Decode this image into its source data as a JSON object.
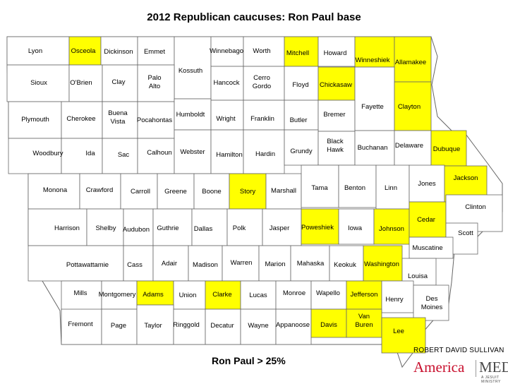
{
  "title": "2012 Republican caucuses: Ron Paul base",
  "legend": "Ron Paul  > 25%",
  "author": "ROBERT DAVID SULLIVAN",
  "logo": {
    "left": "America",
    "right": "MEDIA",
    "sub": "A JESUIT MINISTRY"
  },
  "colors": {
    "highlight": "#ffff00",
    "default": "#ffffff",
    "border": "#666666"
  },
  "counties": [
    {
      "name": "Lyon",
      "highlighted": false
    },
    {
      "name": "Osceola",
      "highlighted": true
    },
    {
      "name": "Dickinson",
      "highlighted": false
    },
    {
      "name": "Emmet",
      "highlighted": false
    },
    {
      "name": "Kossuth",
      "highlighted": false
    },
    {
      "name": "Winnebago",
      "highlighted": false
    },
    {
      "name": "Worth",
      "highlighted": false
    },
    {
      "name": "Mitchell",
      "highlighted": true
    },
    {
      "name": "Howard",
      "highlighted": false
    },
    {
      "name": "Winneshiek",
      "highlighted": true
    },
    {
      "name": "Allamakee",
      "highlighted": true
    },
    {
      "name": "Sioux",
      "highlighted": false
    },
    {
      "name": "O'Brien",
      "highlighted": false
    },
    {
      "name": "Clay",
      "highlighted": false
    },
    {
      "name": "Palo Alto",
      "highlighted": false
    },
    {
      "name": "Hancock",
      "highlighted": false
    },
    {
      "name": "Cerro Gordo",
      "highlighted": false
    },
    {
      "name": "Floyd",
      "highlighted": false
    },
    {
      "name": "Chickasaw",
      "highlighted": true
    },
    {
      "name": "Plymouth",
      "highlighted": false
    },
    {
      "name": "Cherokee",
      "highlighted": false
    },
    {
      "name": "Buena Vista",
      "highlighted": false
    },
    {
      "name": "Pocahontas",
      "highlighted": false
    },
    {
      "name": "Humboldt",
      "highlighted": false
    },
    {
      "name": "Wright",
      "highlighted": false
    },
    {
      "name": "Franklin",
      "highlighted": false
    },
    {
      "name": "Butler",
      "highlighted": false
    },
    {
      "name": "Bremer",
      "highlighted": false
    },
    {
      "name": "Fayette",
      "highlighted": false
    },
    {
      "name": "Clayton",
      "highlighted": true
    },
    {
      "name": "Woodbury",
      "highlighted": false
    },
    {
      "name": "Ida",
      "highlighted": false
    },
    {
      "name": "Sac",
      "highlighted": false
    },
    {
      "name": "Calhoun",
      "highlighted": false
    },
    {
      "name": "Webster",
      "highlighted": false
    },
    {
      "name": "Hamilton",
      "highlighted": false
    },
    {
      "name": "Hardin",
      "highlighted": false
    },
    {
      "name": "Grundy",
      "highlighted": false
    },
    {
      "name": "Black Hawk",
      "highlighted": false
    },
    {
      "name": "Buchanan",
      "highlighted": false
    },
    {
      "name": "Delaware",
      "highlighted": false
    },
    {
      "name": "Dubuque",
      "highlighted": true
    },
    {
      "name": "Monona",
      "highlighted": false
    },
    {
      "name": "Crawford",
      "highlighted": false
    },
    {
      "name": "Carroll",
      "highlighted": false
    },
    {
      "name": "Greene",
      "highlighted": false
    },
    {
      "name": "Boone",
      "highlighted": false
    },
    {
      "name": "Story",
      "highlighted": true
    },
    {
      "name": "Marshall",
      "highlighted": false
    },
    {
      "name": "Tama",
      "highlighted": false
    },
    {
      "name": "Benton",
      "highlighted": false
    },
    {
      "name": "Linn",
      "highlighted": false
    },
    {
      "name": "Jones",
      "highlighted": false
    },
    {
      "name": "Jackson",
      "highlighted": true
    },
    {
      "name": "Harrison",
      "highlighted": false
    },
    {
      "name": "Shelby",
      "highlighted": false
    },
    {
      "name": "Audubon",
      "highlighted": false
    },
    {
      "name": "Guthrie",
      "highlighted": false
    },
    {
      "name": "Dallas",
      "highlighted": false
    },
    {
      "name": "Polk",
      "highlighted": false
    },
    {
      "name": "Jasper",
      "highlighted": false
    },
    {
      "name": "Poweshiek",
      "highlighted": true
    },
    {
      "name": "Iowa",
      "highlighted": false
    },
    {
      "name": "Johnson",
      "highlighted": true
    },
    {
      "name": "Cedar",
      "highlighted": true
    },
    {
      "name": "Clinton",
      "highlighted": false
    },
    {
      "name": "Scott",
      "highlighted": false
    },
    {
      "name": "Pottawattamie",
      "highlighted": false
    },
    {
      "name": "Cass",
      "highlighted": false
    },
    {
      "name": "Adair",
      "highlighted": false
    },
    {
      "name": "Madison",
      "highlighted": false
    },
    {
      "name": "Warren",
      "highlighted": false
    },
    {
      "name": "Marion",
      "highlighted": false
    },
    {
      "name": "Mahaska",
      "highlighted": false
    },
    {
      "name": "Keokuk",
      "highlighted": false
    },
    {
      "name": "Washington",
      "highlighted": true
    },
    {
      "name": "Muscatine",
      "highlighted": false
    },
    {
      "name": "Louisa",
      "highlighted": false
    },
    {
      "name": "Mills",
      "highlighted": false
    },
    {
      "name": "Montgomery",
      "highlighted": false
    },
    {
      "name": "Adams",
      "highlighted": true
    },
    {
      "name": "Union",
      "highlighted": false
    },
    {
      "name": "Clarke",
      "highlighted": true
    },
    {
      "name": "Lucas",
      "highlighted": false
    },
    {
      "name": "Monroe",
      "highlighted": false
    },
    {
      "name": "Wapello",
      "highlighted": false
    },
    {
      "name": "Jefferson",
      "highlighted": true
    },
    {
      "name": "Henry",
      "highlighted": false
    },
    {
      "name": "Des Moines",
      "highlighted": false
    },
    {
      "name": "Fremont",
      "highlighted": false
    },
    {
      "name": "Page",
      "highlighted": false
    },
    {
      "name": "Taylor",
      "highlighted": false
    },
    {
      "name": "Ringgold",
      "highlighted": false
    },
    {
      "name": "Decatur",
      "highlighted": false
    },
    {
      "name": "Wayne",
      "highlighted": false
    },
    {
      "name": "Appanoose",
      "highlighted": false
    },
    {
      "name": "Davis",
      "highlighted": true
    },
    {
      "name": "Van Buren",
      "highlighted": true
    },
    {
      "name": "Lee",
      "highlighted": true
    }
  ]
}
